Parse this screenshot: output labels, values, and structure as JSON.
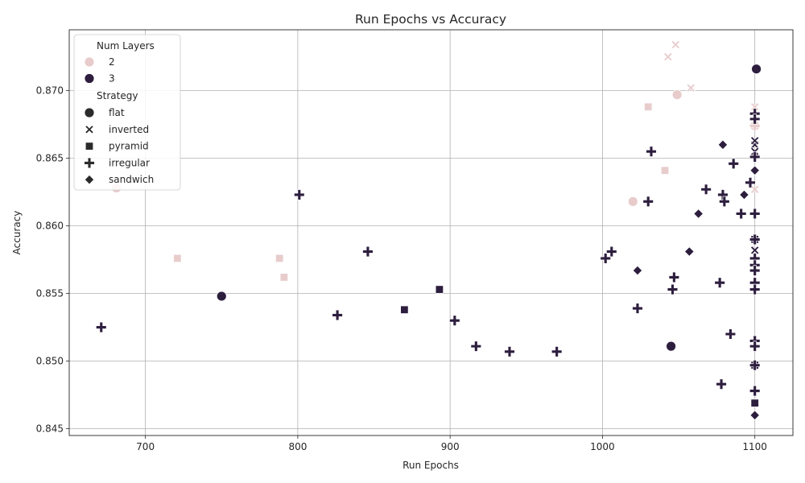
{
  "chart_data": {
    "type": "scatter",
    "title": "Run Epochs vs Accuracy",
    "xlabel": "Run Epochs",
    "ylabel": "Accuracy",
    "xlim": [
      650,
      1125
    ],
    "ylim": [
      0.8445,
      0.8745
    ],
    "xticks": [
      700,
      800,
      900,
      1000,
      1100
    ],
    "yticks": [
      0.845,
      0.85,
      0.855,
      0.86,
      0.865,
      0.87
    ],
    "ytick_labels": [
      "0.845",
      "0.850",
      "0.855",
      "0.860",
      "0.865",
      "0.870"
    ],
    "grid": true,
    "legend": {
      "placement": "top-left",
      "hue_title": "Num Layers",
      "hue_entries": [
        {
          "label": "2",
          "color": "#e8cccc"
        },
        {
          "label": "3",
          "color": "#2d1e3e"
        }
      ],
      "style_title": "Strategy",
      "style_entries": [
        {
          "label": "flat",
          "marker": "circle"
        },
        {
          "label": "inverted",
          "marker": "x"
        },
        {
          "label": "pyramid",
          "marker": "square"
        },
        {
          "label": "irregular",
          "marker": "plus"
        },
        {
          "label": "sandwich",
          "marker": "diamond"
        }
      ]
    },
    "colors": {
      "2": "#e8cccc",
      "3": "#2d1e3e"
    },
    "points": [
      {
        "x": 681,
        "y": 0.8628,
        "layers": 2,
        "strategy": "flat"
      },
      {
        "x": 1020,
        "y": 0.8618,
        "layers": 2,
        "strategy": "flat"
      },
      {
        "x": 1049,
        "y": 0.8697,
        "layers": 2,
        "strategy": "flat"
      },
      {
        "x": 1100,
        "y": 0.8674,
        "layers": 2,
        "strategy": "flat"
      },
      {
        "x": 1048,
        "y": 0.8734,
        "layers": 2,
        "strategy": "inverted"
      },
      {
        "x": 1043,
        "y": 0.8725,
        "layers": 2,
        "strategy": "inverted"
      },
      {
        "x": 1058,
        "y": 0.8702,
        "layers": 2,
        "strategy": "inverted"
      },
      {
        "x": 1100,
        "y": 0.8688,
        "layers": 2,
        "strategy": "inverted"
      },
      {
        "x": 1100,
        "y": 0.8627,
        "layers": 2,
        "strategy": "inverted"
      },
      {
        "x": 721,
        "y": 0.8576,
        "layers": 2,
        "strategy": "pyramid"
      },
      {
        "x": 788,
        "y": 0.8576,
        "layers": 2,
        "strategy": "pyramid"
      },
      {
        "x": 791,
        "y": 0.8562,
        "layers": 2,
        "strategy": "pyramid"
      },
      {
        "x": 1030,
        "y": 0.8688,
        "layers": 2,
        "strategy": "pyramid"
      },
      {
        "x": 1041,
        "y": 0.8641,
        "layers": 2,
        "strategy": "pyramid"
      },
      {
        "x": 1100,
        "y": 0.8674,
        "layers": 2,
        "strategy": "irregular"
      },
      {
        "x": 1101,
        "y": 0.8716,
        "layers": 3,
        "strategy": "flat"
      },
      {
        "x": 750,
        "y": 0.8548,
        "layers": 3,
        "strategy": "flat"
      },
      {
        "x": 1045,
        "y": 0.8511,
        "layers": 3,
        "strategy": "flat"
      },
      {
        "x": 1100,
        "y": 0.866,
        "layers": 3,
        "strategy": "inverted"
      },
      {
        "x": 1100,
        "y": 0.8655,
        "layers": 3,
        "strategy": "inverted"
      },
      {
        "x": 1100,
        "y": 0.8582,
        "layers": 3,
        "strategy": "inverted"
      },
      {
        "x": 1100,
        "y": 0.8663,
        "layers": 3,
        "strategy": "inverted"
      },
      {
        "x": 893,
        "y": 0.8553,
        "layers": 3,
        "strategy": "pyramid"
      },
      {
        "x": 870,
        "y": 0.8538,
        "layers": 3,
        "strategy": "pyramid"
      },
      {
        "x": 1100,
        "y": 0.8497,
        "layers": 3,
        "strategy": "pyramid"
      },
      {
        "x": 1100,
        "y": 0.8469,
        "layers": 3,
        "strategy": "pyramid"
      },
      {
        "x": 1100,
        "y": 0.859,
        "layers": 3,
        "strategy": "pyramid"
      },
      {
        "x": 671,
        "y": 0.8525,
        "layers": 3,
        "strategy": "irregular"
      },
      {
        "x": 801,
        "y": 0.8623,
        "layers": 3,
        "strategy": "irregular"
      },
      {
        "x": 826,
        "y": 0.8534,
        "layers": 3,
        "strategy": "irregular"
      },
      {
        "x": 846,
        "y": 0.8581,
        "layers": 3,
        "strategy": "irregular"
      },
      {
        "x": 903,
        "y": 0.853,
        "layers": 3,
        "strategy": "irregular"
      },
      {
        "x": 917,
        "y": 0.8511,
        "layers": 3,
        "strategy": "irregular"
      },
      {
        "x": 939,
        "y": 0.8507,
        "layers": 3,
        "strategy": "irregular"
      },
      {
        "x": 970,
        "y": 0.8507,
        "layers": 3,
        "strategy": "irregular"
      },
      {
        "x": 1002,
        "y": 0.8576,
        "layers": 3,
        "strategy": "irregular"
      },
      {
        "x": 1006,
        "y": 0.8581,
        "layers": 3,
        "strategy": "irregular"
      },
      {
        "x": 1023,
        "y": 0.8539,
        "layers": 3,
        "strategy": "irregular"
      },
      {
        "x": 1030,
        "y": 0.8618,
        "layers": 3,
        "strategy": "irregular"
      },
      {
        "x": 1032,
        "y": 0.8655,
        "layers": 3,
        "strategy": "irregular"
      },
      {
        "x": 1046,
        "y": 0.8553,
        "layers": 3,
        "strategy": "irregular"
      },
      {
        "x": 1047,
        "y": 0.8562,
        "layers": 3,
        "strategy": "irregular"
      },
      {
        "x": 1068,
        "y": 0.8627,
        "layers": 3,
        "strategy": "irregular"
      },
      {
        "x": 1077,
        "y": 0.8558,
        "layers": 3,
        "strategy": "irregular"
      },
      {
        "x": 1078,
        "y": 0.8483,
        "layers": 3,
        "strategy": "irregular"
      },
      {
        "x": 1079,
        "y": 0.8623,
        "layers": 3,
        "strategy": "irregular"
      },
      {
        "x": 1080,
        "y": 0.8618,
        "layers": 3,
        "strategy": "irregular"
      },
      {
        "x": 1084,
        "y": 0.852,
        "layers": 3,
        "strategy": "irregular"
      },
      {
        "x": 1086,
        "y": 0.8646,
        "layers": 3,
        "strategy": "irregular"
      },
      {
        "x": 1091,
        "y": 0.8609,
        "layers": 3,
        "strategy": "irregular"
      },
      {
        "x": 1097,
        "y": 0.8632,
        "layers": 3,
        "strategy": "irregular"
      },
      {
        "x": 1100,
        "y": 0.8683,
        "layers": 3,
        "strategy": "irregular"
      },
      {
        "x": 1100,
        "y": 0.8679,
        "layers": 3,
        "strategy": "irregular"
      },
      {
        "x": 1100,
        "y": 0.8651,
        "layers": 3,
        "strategy": "irregular"
      },
      {
        "x": 1100,
        "y": 0.8609,
        "layers": 3,
        "strategy": "irregular"
      },
      {
        "x": 1100,
        "y": 0.859,
        "layers": 3,
        "strategy": "irregular"
      },
      {
        "x": 1100,
        "y": 0.8576,
        "layers": 3,
        "strategy": "irregular"
      },
      {
        "x": 1100,
        "y": 0.8571,
        "layers": 3,
        "strategy": "irregular"
      },
      {
        "x": 1100,
        "y": 0.8567,
        "layers": 3,
        "strategy": "irregular"
      },
      {
        "x": 1100,
        "y": 0.8558,
        "layers": 3,
        "strategy": "irregular"
      },
      {
        "x": 1100,
        "y": 0.8553,
        "layers": 3,
        "strategy": "irregular"
      },
      {
        "x": 1100,
        "y": 0.8515,
        "layers": 3,
        "strategy": "irregular"
      },
      {
        "x": 1100,
        "y": 0.8511,
        "layers": 3,
        "strategy": "irregular"
      },
      {
        "x": 1100,
        "y": 0.8497,
        "layers": 3,
        "strategy": "irregular"
      },
      {
        "x": 1100,
        "y": 0.8478,
        "layers": 3,
        "strategy": "irregular"
      },
      {
        "x": 1023,
        "y": 0.8567,
        "layers": 3,
        "strategy": "sandwich"
      },
      {
        "x": 1057,
        "y": 0.8581,
        "layers": 3,
        "strategy": "sandwich"
      },
      {
        "x": 1063,
        "y": 0.8609,
        "layers": 3,
        "strategy": "sandwich"
      },
      {
        "x": 1079,
        "y": 0.866,
        "layers": 3,
        "strategy": "sandwich"
      },
      {
        "x": 1093,
        "y": 0.8623,
        "layers": 3,
        "strategy": "sandwich"
      },
      {
        "x": 1100,
        "y": 0.8641,
        "layers": 3,
        "strategy": "sandwich"
      },
      {
        "x": 1100,
        "y": 0.846,
        "layers": 3,
        "strategy": "sandwich"
      }
    ]
  }
}
